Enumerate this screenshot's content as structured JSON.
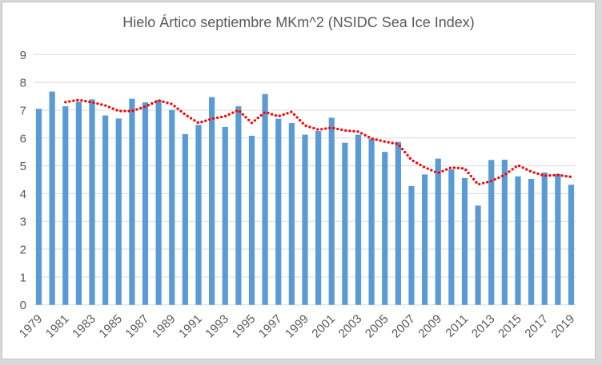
{
  "window": {
    "background_color": "#ffffff",
    "surround_color": "#d9d9d9",
    "frame_border_color": "#c3c1bf"
  },
  "chart_data": {
    "type": "bar",
    "title": "Hielo Ártico septiembre MKm^2 (NSIDC Sea Ice Index)",
    "xlabel": "",
    "ylabel": "",
    "ylim": [
      0,
      9
    ],
    "yticks": [
      0,
      1,
      2,
      3,
      4,
      5,
      6,
      7,
      8,
      9
    ],
    "grid": true,
    "legend": "none",
    "categories": [
      1979,
      1980,
      1981,
      1982,
      1983,
      1984,
      1985,
      1986,
      1987,
      1988,
      1989,
      1990,
      1991,
      1992,
      1993,
      1994,
      1995,
      1996,
      1997,
      1998,
      1999,
      2000,
      2001,
      2002,
      2003,
      2004,
      2005,
      2006,
      2007,
      2008,
      2009,
      2010,
      2011,
      2012,
      2013,
      2014,
      2015,
      2016,
      2017,
      2018,
      2019
    ],
    "xtick_labels": [
      "1979",
      "1981",
      "1983",
      "1985",
      "1987",
      "1989",
      "1991",
      "1993",
      "1995",
      "1997",
      "1999",
      "2001",
      "2003",
      "2005",
      "2007",
      "2009",
      "2011",
      "2013",
      "2015",
      "2017",
      "2019"
    ],
    "series": [
      {
        "id": "september-ice-extent-bars",
        "type": "bar",
        "color": "#5b9bd5",
        "values": [
          7.05,
          7.67,
          7.14,
          7.3,
          7.39,
          6.81,
          6.7,
          7.41,
          7.28,
          7.37,
          7.01,
          6.14,
          6.47,
          7.47,
          6.4,
          7.14,
          6.08,
          7.58,
          6.69,
          6.54,
          6.12,
          6.25,
          6.73,
          5.83,
          6.12,
          5.98,
          5.5,
          5.86,
          4.27,
          4.69,
          5.26,
          4.87,
          4.56,
          3.57,
          5.21,
          5.22,
          4.62,
          4.53,
          4.76,
          4.71,
          4.32
        ]
      },
      {
        "id": "moving-average-trendline",
        "type": "dotted-line",
        "color": "#ff0000",
        "values": [
          null,
          null,
          7.29,
          7.37,
          7.28,
          7.17,
          6.97,
          6.97,
          7.13,
          7.35,
          7.22,
          6.84,
          6.54,
          6.69,
          6.78,
          7.0,
          6.54,
          6.93,
          6.78,
          6.94,
          6.45,
          6.3,
          6.37,
          6.27,
          6.23,
          5.98,
          5.87,
          5.78,
          5.21,
          4.94,
          4.74,
          4.94,
          4.9,
          4.33,
          4.45,
          4.67,
          5.02,
          4.79,
          4.64,
          4.67,
          4.6
        ]
      }
    ],
    "style": {
      "gridline_color": "#d9d9d9",
      "axis_line_color": "#d9d9d9",
      "axis_text_color": "#595959",
      "title_color": "#595959"
    }
  }
}
